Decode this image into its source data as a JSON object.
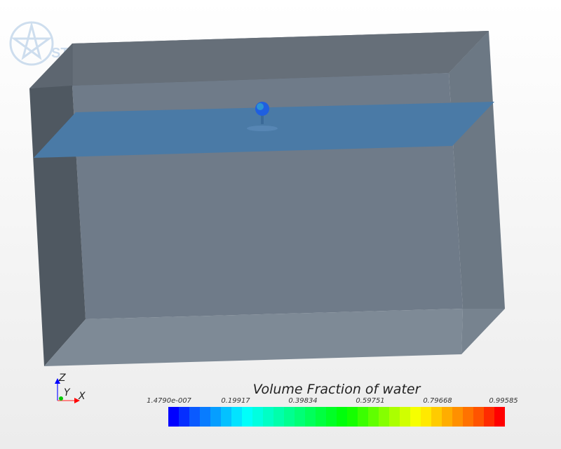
{
  "logo": {
    "text": "STAR"
  },
  "legend": {
    "title": "Volume Fraction of water",
    "ticks": [
      "1.4790e-007",
      "0.19917",
      "0.39834",
      "0.59751",
      "0.79668",
      "0.99585"
    ],
    "range": [
      1.479e-07,
      0.99585
    ],
    "segments": 32,
    "color_stops": [
      {
        "at": 0.0,
        "color": "#0000ff"
      },
      {
        "at": 0.06,
        "color": "#0a55ff"
      },
      {
        "at": 0.22,
        "color": "#00ffff"
      },
      {
        "at": 0.53,
        "color": "#00ff00"
      },
      {
        "at": 0.75,
        "color": "#ffff00"
      },
      {
        "at": 0.94,
        "color": "#ff5000"
      },
      {
        "at": 1.0,
        "color": "#ff0000"
      }
    ]
  },
  "axes": {
    "x": "X",
    "y": "Y",
    "z": "Z"
  },
  "colors": {
    "box": "#6b7886",
    "water_plane": "#4a7aa6",
    "droplet": "#1f5fe0"
  }
}
